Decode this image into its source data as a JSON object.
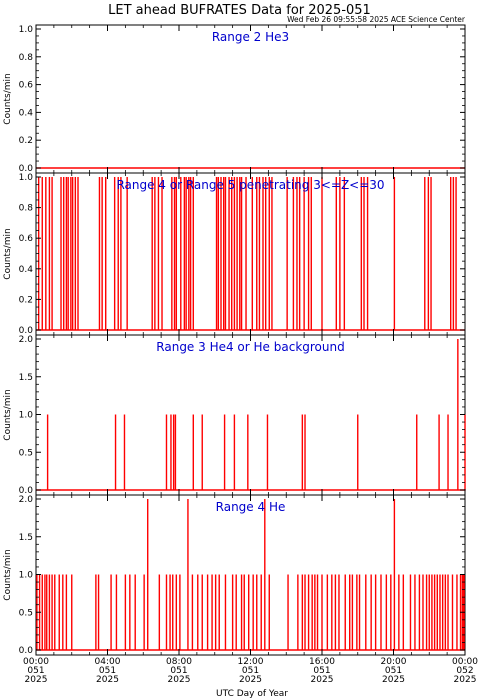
{
  "title": "LET ahead BUFRATES Data for 2025-051",
  "timestamp": "Wed Feb 26 09:55:58 2025 ACE Science Center",
  "xlabel": "UTC Day of Year",
  "colors": {
    "series": "#ff0000",
    "panel_label": "#0000cc",
    "axes": "#000000"
  },
  "chart_data": [
    {
      "type": "line",
      "label": "Range 2 He3",
      "ylabel": "Counts/min",
      "ylim": [
        0,
        1
      ],
      "yticks": [
        "0.0",
        "0.2",
        "0.4",
        "0.6",
        "0.8",
        "1.0"
      ],
      "spikes": []
    },
    {
      "type": "line",
      "label": "Range 4 or Range 5 penetrating 3<=Z<=30",
      "ylabel": "Counts/min",
      "ylim": [
        0,
        1
      ],
      "yticks": [
        "0.0",
        "0.2",
        "0.4",
        "0.6",
        "0.8",
        "1.0"
      ],
      "spikes": [
        {
          "t": 0.15,
          "v": 1
        },
        {
          "t": 0.35,
          "v": 1
        },
        {
          "t": 0.55,
          "v": 1
        },
        {
          "t": 0.75,
          "v": 1
        },
        {
          "t": 0.9,
          "v": 1
        },
        {
          "t": 1.4,
          "v": 1
        },
        {
          "t": 1.55,
          "v": 1
        },
        {
          "t": 1.7,
          "v": 1
        },
        {
          "t": 1.8,
          "v": 1
        },
        {
          "t": 1.95,
          "v": 1
        },
        {
          "t": 2.05,
          "v": 1
        },
        {
          "t": 2.2,
          "v": 1
        },
        {
          "t": 2.35,
          "v": 1
        },
        {
          "t": 3.55,
          "v": 1
        },
        {
          "t": 3.7,
          "v": 1
        },
        {
          "t": 3.9,
          "v": 1
        },
        {
          "t": 4.4,
          "v": 1
        },
        {
          "t": 4.6,
          "v": 1
        },
        {
          "t": 4.75,
          "v": 1
        },
        {
          "t": 5.1,
          "v": 1
        },
        {
          "t": 6.5,
          "v": 1
        },
        {
          "t": 6.65,
          "v": 1
        },
        {
          "t": 6.85,
          "v": 1
        },
        {
          "t": 7.05,
          "v": 1
        },
        {
          "t": 7.6,
          "v": 1
        },
        {
          "t": 7.75,
          "v": 1
        },
        {
          "t": 7.85,
          "v": 1
        },
        {
          "t": 8.1,
          "v": 1
        },
        {
          "t": 8.3,
          "v": 1
        },
        {
          "t": 8.4,
          "v": 1
        },
        {
          "t": 8.55,
          "v": 1
        },
        {
          "t": 8.65,
          "v": 1
        },
        {
          "t": 8.8,
          "v": 1
        },
        {
          "t": 10.1,
          "v": 1
        },
        {
          "t": 10.2,
          "v": 1
        },
        {
          "t": 10.35,
          "v": 1
        },
        {
          "t": 10.5,
          "v": 1
        },
        {
          "t": 10.6,
          "v": 1
        },
        {
          "t": 10.8,
          "v": 1
        },
        {
          "t": 10.95,
          "v": 1
        },
        {
          "t": 11.1,
          "v": 1
        },
        {
          "t": 11.25,
          "v": 1
        },
        {
          "t": 11.4,
          "v": 1
        },
        {
          "t": 11.5,
          "v": 1
        },
        {
          "t": 11.75,
          "v": 1
        },
        {
          "t": 12.1,
          "v": 1
        },
        {
          "t": 12.35,
          "v": 1
        },
        {
          "t": 12.5,
          "v": 1
        },
        {
          "t": 12.7,
          "v": 1
        },
        {
          "t": 12.85,
          "v": 1
        },
        {
          "t": 13.05,
          "v": 1
        },
        {
          "t": 13.2,
          "v": 1
        },
        {
          "t": 14.05,
          "v": 1
        },
        {
          "t": 14.4,
          "v": 1
        },
        {
          "t": 14.6,
          "v": 1
        },
        {
          "t": 14.75,
          "v": 1
        },
        {
          "t": 15.0,
          "v": 1
        },
        {
          "t": 15.25,
          "v": 1
        },
        {
          "t": 15.4,
          "v": 1
        },
        {
          "t": 16.0,
          "v": 1
        },
        {
          "t": 16.8,
          "v": 1
        },
        {
          "t": 17.0,
          "v": 1
        },
        {
          "t": 17.25,
          "v": 1
        },
        {
          "t": 18.2,
          "v": 1
        },
        {
          "t": 18.35,
          "v": 1
        },
        {
          "t": 18.55,
          "v": 1
        },
        {
          "t": 20.05,
          "v": 1
        },
        {
          "t": 21.75,
          "v": 1
        },
        {
          "t": 21.95,
          "v": 1
        },
        {
          "t": 22.1,
          "v": 1
        },
        {
          "t": 23.2,
          "v": 1
        },
        {
          "t": 23.35,
          "v": 1
        },
        {
          "t": 23.5,
          "v": 1
        }
      ]
    },
    {
      "type": "line",
      "label": "Range 3 He4 or He background",
      "ylabel": "Counts/min",
      "ylim": [
        0,
        2
      ],
      "yticks": [
        "0.0",
        "0.5",
        "1.0",
        "1.5",
        "2.0"
      ],
      "spikes": [
        {
          "t": 0.65,
          "v": 1
        },
        {
          "t": 4.45,
          "v": 1
        },
        {
          "t": 4.95,
          "v": 1
        },
        {
          "t": 7.3,
          "v": 1
        },
        {
          "t": 7.55,
          "v": 1
        },
        {
          "t": 7.7,
          "v": 1
        },
        {
          "t": 7.8,
          "v": 1
        },
        {
          "t": 8.8,
          "v": 1
        },
        {
          "t": 9.3,
          "v": 1
        },
        {
          "t": 10.55,
          "v": 1
        },
        {
          "t": 11.1,
          "v": 1
        },
        {
          "t": 11.85,
          "v": 1
        },
        {
          "t": 12.95,
          "v": 1
        },
        {
          "t": 14.9,
          "v": 1
        },
        {
          "t": 15.05,
          "v": 1
        },
        {
          "t": 18.0,
          "v": 1
        },
        {
          "t": 21.3,
          "v": 1
        },
        {
          "t": 22.55,
          "v": 1
        },
        {
          "t": 23.05,
          "v": 1
        },
        {
          "t": 23.6,
          "v": 2
        },
        {
          "t": 24.0,
          "v": 1
        }
      ]
    },
    {
      "type": "line",
      "label": "Range 4 He",
      "ylabel": "Counts/min",
      "ylim": [
        0,
        2
      ],
      "yticks": [
        "0.0",
        "0.5",
        "1.0",
        "1.5",
        "2.0"
      ],
      "spikes": [
        {
          "t": 0.05,
          "v": 1
        },
        {
          "t": 0.2,
          "v": 1
        },
        {
          "t": 0.35,
          "v": 1
        },
        {
          "t": 0.5,
          "v": 1
        },
        {
          "t": 0.6,
          "v": 1
        },
        {
          "t": 0.75,
          "v": 1
        },
        {
          "t": 0.9,
          "v": 1
        },
        {
          "t": 1.05,
          "v": 1
        },
        {
          "t": 1.3,
          "v": 1
        },
        {
          "t": 1.5,
          "v": 1
        },
        {
          "t": 1.7,
          "v": 1
        },
        {
          "t": 2.0,
          "v": 1
        },
        {
          "t": 3.35,
          "v": 1
        },
        {
          "t": 3.5,
          "v": 1
        },
        {
          "t": 4.2,
          "v": 1
        },
        {
          "t": 4.5,
          "v": 1
        },
        {
          "t": 5.0,
          "v": 1
        },
        {
          "t": 5.25,
          "v": 1
        },
        {
          "t": 5.55,
          "v": 1
        },
        {
          "t": 6.05,
          "v": 1
        },
        {
          "t": 6.25,
          "v": 2
        },
        {
          "t": 6.9,
          "v": 1
        },
        {
          "t": 7.3,
          "v": 1
        },
        {
          "t": 7.5,
          "v": 1
        },
        {
          "t": 7.65,
          "v": 1
        },
        {
          "t": 7.85,
          "v": 1
        },
        {
          "t": 8.05,
          "v": 1
        },
        {
          "t": 8.5,
          "v": 2
        },
        {
          "t": 8.75,
          "v": 1
        },
        {
          "t": 9.05,
          "v": 1
        },
        {
          "t": 9.3,
          "v": 1
        },
        {
          "t": 9.6,
          "v": 1
        },
        {
          "t": 9.85,
          "v": 1
        },
        {
          "t": 10.05,
          "v": 1
        },
        {
          "t": 10.25,
          "v": 1
        },
        {
          "t": 10.6,
          "v": 1
        },
        {
          "t": 11.0,
          "v": 1
        },
        {
          "t": 11.2,
          "v": 1
        },
        {
          "t": 11.5,
          "v": 1
        },
        {
          "t": 11.65,
          "v": 1
        },
        {
          "t": 11.9,
          "v": 1
        },
        {
          "t": 12.15,
          "v": 1
        },
        {
          "t": 12.35,
          "v": 1
        },
        {
          "t": 12.6,
          "v": 1
        },
        {
          "t": 12.8,
          "v": 2
        },
        {
          "t": 13.05,
          "v": 1
        },
        {
          "t": 14.1,
          "v": 1
        },
        {
          "t": 14.65,
          "v": 1
        },
        {
          "t": 14.9,
          "v": 1
        },
        {
          "t": 15.05,
          "v": 1
        },
        {
          "t": 15.25,
          "v": 1
        },
        {
          "t": 15.45,
          "v": 1
        },
        {
          "t": 15.6,
          "v": 1
        },
        {
          "t": 15.75,
          "v": 1
        },
        {
          "t": 16.0,
          "v": 1
        },
        {
          "t": 16.3,
          "v": 1
        },
        {
          "t": 16.55,
          "v": 1
        },
        {
          "t": 16.75,
          "v": 1
        },
        {
          "t": 16.95,
          "v": 1
        },
        {
          "t": 17.3,
          "v": 1
        },
        {
          "t": 17.55,
          "v": 1
        },
        {
          "t": 17.7,
          "v": 1
        },
        {
          "t": 17.95,
          "v": 1
        },
        {
          "t": 18.1,
          "v": 1
        },
        {
          "t": 18.45,
          "v": 1
        },
        {
          "t": 18.75,
          "v": 1
        },
        {
          "t": 19.0,
          "v": 1
        },
        {
          "t": 19.3,
          "v": 1
        },
        {
          "t": 19.6,
          "v": 1
        },
        {
          "t": 19.85,
          "v": 1
        },
        {
          "t": 20.05,
          "v": 2
        },
        {
          "t": 20.3,
          "v": 1
        },
        {
          "t": 20.55,
          "v": 1
        },
        {
          "t": 20.95,
          "v": 1
        },
        {
          "t": 21.2,
          "v": 1
        },
        {
          "t": 21.45,
          "v": 1
        },
        {
          "t": 21.65,
          "v": 1
        },
        {
          "t": 21.85,
          "v": 1
        },
        {
          "t": 22.0,
          "v": 1
        },
        {
          "t": 22.15,
          "v": 1
        },
        {
          "t": 22.3,
          "v": 1
        },
        {
          "t": 22.45,
          "v": 1
        },
        {
          "t": 22.6,
          "v": 1
        },
        {
          "t": 22.75,
          "v": 1
        },
        {
          "t": 22.9,
          "v": 1
        },
        {
          "t": 23.05,
          "v": 1
        },
        {
          "t": 23.3,
          "v": 1
        },
        {
          "t": 23.55,
          "v": 1
        },
        {
          "t": 23.75,
          "v": 1
        },
        {
          "t": 23.85,
          "v": 1
        },
        {
          "t": 23.9,
          "v": 1
        },
        {
          "t": 23.95,
          "v": 1
        }
      ]
    }
  ],
  "x_axis": {
    "xlim_hours": [
      0,
      24
    ],
    "ticks": [
      {
        "hour": 0,
        "time": "00:00",
        "doy": "051",
        "year": "2025"
      },
      {
        "hour": 4,
        "time": "04:00",
        "doy": "051",
        "year": "2025"
      },
      {
        "hour": 8,
        "time": "08:00",
        "doy": "051",
        "year": "2025"
      },
      {
        "hour": 12,
        "time": "12:00",
        "doy": "051",
        "year": "2025"
      },
      {
        "hour": 16,
        "time": "16:00",
        "doy": "051",
        "year": "2025"
      },
      {
        "hour": 20,
        "time": "20:00",
        "doy": "051",
        "year": "2025"
      },
      {
        "hour": 24,
        "time": "00:00",
        "doy": "052",
        "year": "2025"
      }
    ]
  }
}
